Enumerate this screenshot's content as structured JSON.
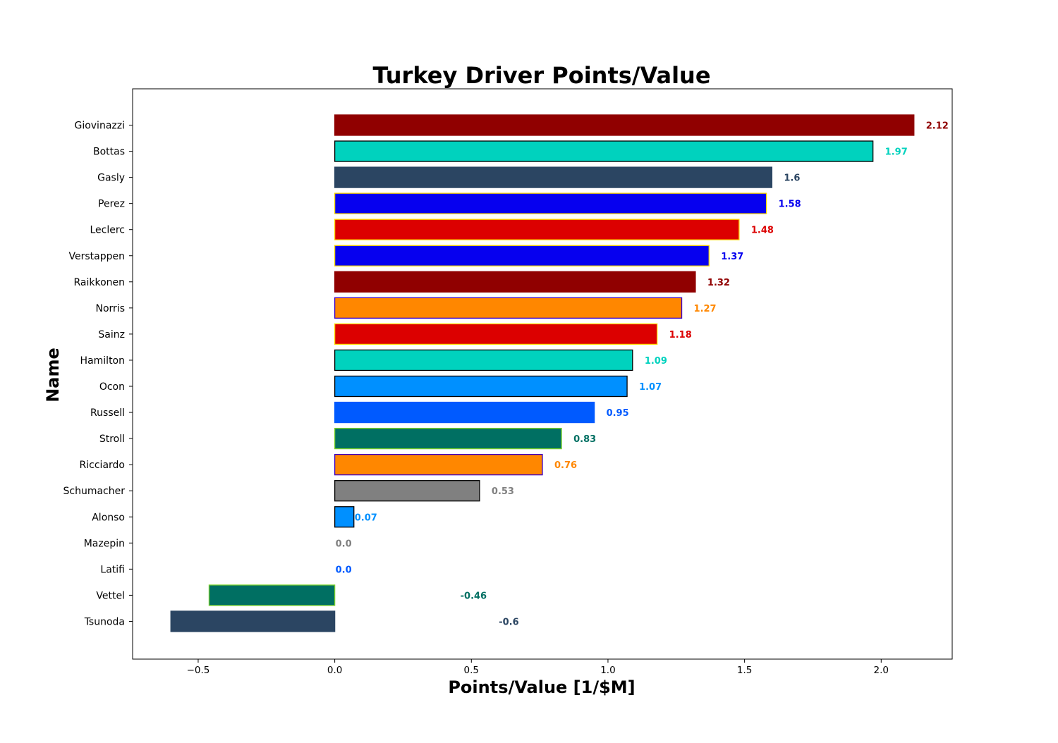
{
  "chart_data": {
    "type": "bar",
    "orientation": "horizontal",
    "title": "Turkey Driver Points/Value",
    "xlabel": "Points/Value [1/$M]",
    "ylabel": "Name",
    "xlim": [
      -0.74,
      2.26
    ],
    "xticks": [
      -0.5,
      0.0,
      0.5,
      1.0,
      1.5,
      2.0
    ],
    "xtick_labels": [
      "−0.5",
      "0.0",
      "0.5",
      "1.0",
      "1.5",
      "2.0"
    ],
    "grid": false,
    "bars": [
      {
        "name": "Giovinazzi",
        "value": 2.12,
        "label": "2.12",
        "fill": "#900000",
        "edge": "#900000"
      },
      {
        "name": "Bottas",
        "value": 1.97,
        "label": "1.97",
        "fill": "#00d2be",
        "edge": "#000000"
      },
      {
        "name": "Gasly",
        "value": 1.6,
        "label": "1.6",
        "fill": "#2b4562",
        "edge": "#2b4562"
      },
      {
        "name": "Perez",
        "value": 1.58,
        "label": "1.58",
        "fill": "#0600ef",
        "edge": "#ffd700"
      },
      {
        "name": "Leclerc",
        "value": 1.48,
        "label": "1.48",
        "fill": "#dc0000",
        "edge": "#ffd700"
      },
      {
        "name": "Verstappen",
        "value": 1.37,
        "label": "1.37",
        "fill": "#0600ef",
        "edge": "#ffd700"
      },
      {
        "name": "Raikkonen",
        "value": 1.32,
        "label": "1.32",
        "fill": "#900000",
        "edge": "#900000"
      },
      {
        "name": "Norris",
        "value": 1.27,
        "label": "1.27",
        "fill": "#ff8700",
        "edge": "#3a00c8"
      },
      {
        "name": "Sainz",
        "value": 1.18,
        "label": "1.18",
        "fill": "#dc0000",
        "edge": "#ffd700"
      },
      {
        "name": "Hamilton",
        "value": 1.09,
        "label": "1.09",
        "fill": "#00d2be",
        "edge": "#000000"
      },
      {
        "name": "Ocon",
        "value": 1.07,
        "label": "1.07",
        "fill": "#0090ff",
        "edge": "#000000"
      },
      {
        "name": "Russell",
        "value": 0.95,
        "label": "0.95",
        "fill": "#005aff",
        "edge": "#005aff"
      },
      {
        "name": "Stroll",
        "value": 0.83,
        "label": "0.83",
        "fill": "#006f62",
        "edge": "#7ad12c"
      },
      {
        "name": "Ricciardo",
        "value": 0.76,
        "label": "0.76",
        "fill": "#ff8700",
        "edge": "#3a00c8"
      },
      {
        "name": "Schumacher",
        "value": 0.53,
        "label": "0.53",
        "fill": "#808080",
        "edge": "#000000"
      },
      {
        "name": "Alonso",
        "value": 0.07,
        "label": "0.07",
        "fill": "#0090ff",
        "edge": "#000000"
      },
      {
        "name": "Mazepin",
        "value": 0.0,
        "label": "0.0",
        "fill": "#808080",
        "edge": "#000000"
      },
      {
        "name": "Latifi",
        "value": 0.0,
        "label": "0.0",
        "fill": "#005aff",
        "edge": "#005aff"
      },
      {
        "name": "Vettel",
        "value": -0.46,
        "label": "-0.46",
        "fill": "#006f62",
        "edge": "#7ad12c"
      },
      {
        "name": "Tsunoda",
        "value": -0.6,
        "label": "-0.6",
        "fill": "#2b4562",
        "edge": "#2b4562"
      }
    ]
  }
}
